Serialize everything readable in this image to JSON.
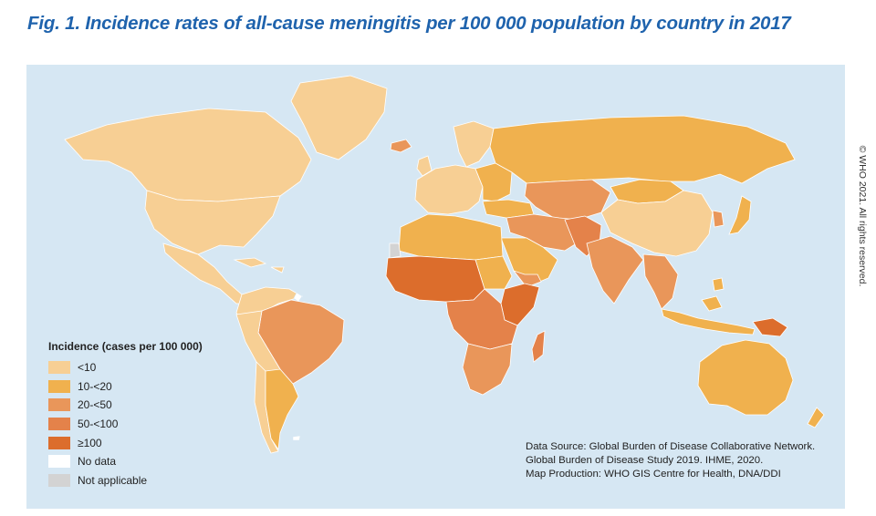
{
  "figure": {
    "title": "Fig. 1. Incidence rates of all-cause meningitis per 100 000 population by country in 2017"
  },
  "copyright": "© WHO 2021. All rights reserved.",
  "legend": {
    "title": "Incidence (cases per 100 000)",
    "items": [
      {
        "label": "<10",
        "color": "#f7cf94"
      },
      {
        "label": "10-<20",
        "color": "#f0b14e"
      },
      {
        "label": "20-<50",
        "color": "#e9965a"
      },
      {
        "label": "50-<100",
        "color": "#e4824a"
      },
      {
        "label": "≥100",
        "color": "#dc6d2c"
      },
      {
        "label": "No data",
        "color": "#ffffff"
      },
      {
        "label": "Not applicable",
        "color": "#d3d3d3"
      }
    ]
  },
  "colors": {
    "ocean": "#d6e7f3",
    "border": "#ffffff",
    "title": "#1f63ad"
  },
  "source": {
    "lines": [
      "Data Source: Global Burden of Disease Collaborative Network.",
      "Global Burden of Disease Study 2019. IHME, 2020.",
      "Map Production: WHO GIS Centre for Health, DNA/DDI"
    ]
  }
}
